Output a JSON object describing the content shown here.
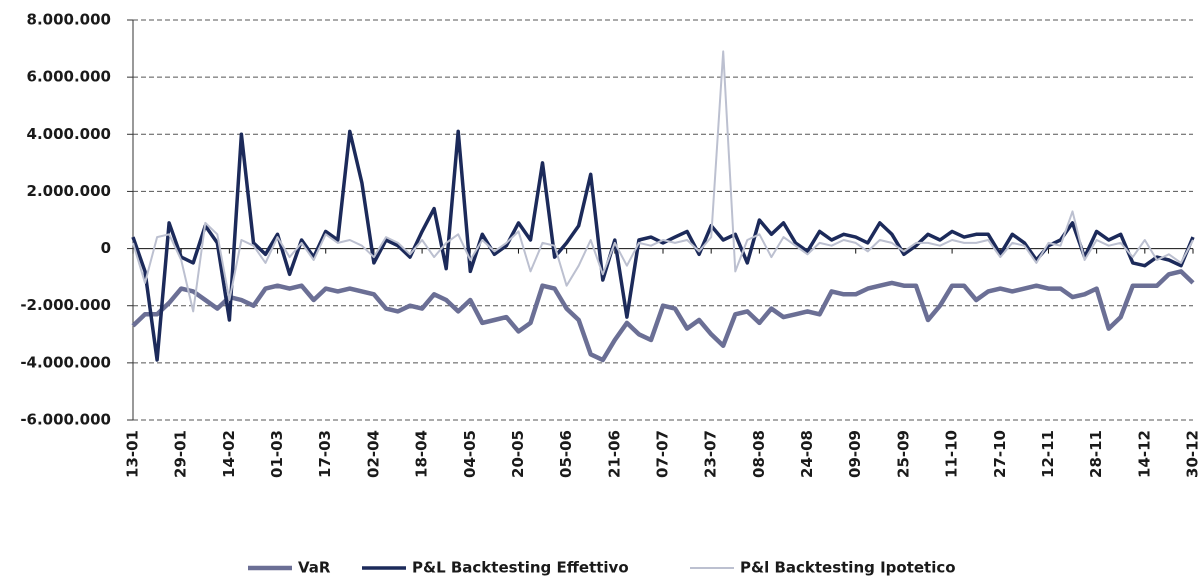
{
  "chart_data": {
    "type": "line",
    "categories": [
      "13-01",
      null,
      null,
      null,
      "29-01",
      null,
      null,
      null,
      "14-02",
      null,
      null,
      null,
      "01-03",
      null,
      null,
      null,
      "17-03",
      null,
      null,
      null,
      "02-04",
      null,
      null,
      null,
      "18-04",
      null,
      null,
      null,
      "04-05",
      null,
      null,
      null,
      "20-05",
      null,
      null,
      null,
      "05-06",
      null,
      null,
      null,
      "21-06",
      null,
      null,
      null,
      "07-07",
      null,
      null,
      null,
      "23-07",
      null,
      null,
      null,
      "08-08",
      null,
      null,
      null,
      "24-08",
      null,
      null,
      null,
      "09-09",
      null,
      null,
      null,
      "25-09",
      null,
      null,
      null,
      "11-10",
      null,
      null,
      null,
      "27-10",
      null,
      null,
      null,
      "12-11",
      null,
      null,
      null,
      "28-11",
      null,
      null,
      null,
      "14-12",
      null,
      null,
      null,
      "30-12"
    ],
    "ylim": [
      -6000000,
      8000000
    ],
    "yticks": [
      {
        "value": -6000000,
        "label": "-6.000.000"
      },
      {
        "value": -4000000,
        "label": "-4.000.000"
      },
      {
        "value": -2000000,
        "label": "-2.000.000"
      },
      0,
      {
        "value": 2000000,
        "label": "2.000.000"
      },
      {
        "value": 4000000,
        "label": "4.000.000"
      },
      {
        "value": 6000000,
        "label": "6.000.000"
      },
      {
        "value": 8000000,
        "label": "8.000.000"
      }
    ],
    "grid": true,
    "legend": "bottom",
    "series": [
      {
        "name": "VaR",
        "color": "#6b6f95",
        "values": [
          -2700000,
          -2300000,
          -2300000,
          -1900000,
          -1400000,
          -1500000,
          -1800000,
          -2100000,
          -1700000,
          -1800000,
          -2000000,
          -1400000,
          -1300000,
          -1400000,
          -1300000,
          -1800000,
          -1400000,
          -1500000,
          -1400000,
          -1500000,
          -1600000,
          -2100000,
          -2200000,
          -2000000,
          -2100000,
          -1600000,
          -1800000,
          -2200000,
          -1800000,
          -2600000,
          -2500000,
          -2400000,
          -2900000,
          -2600000,
          -1300000,
          -1400000,
          -2100000,
          -2500000,
          -3700000,
          -3900000,
          -3200000,
          -2600000,
          -3000000,
          -3200000,
          -2000000,
          -2100000,
          -2800000,
          -2500000,
          -3000000,
          -3400000,
          -2300000,
          -2200000,
          -2600000,
          -2100000,
          -2400000,
          -2300000,
          -2200000,
          -2300000,
          -1500000,
          -1600000,
          -1600000,
          -1400000,
          -1300000,
          -1200000,
          -1300000,
          -1300000,
          -2500000,
          -2000000,
          -1300000,
          -1300000,
          -1800000,
          -1500000,
          -1400000,
          -1500000,
          -1400000,
          -1300000,
          -1400000,
          -1400000,
          -1700000,
          -1600000,
          -1400000,
          -2800000,
          -2400000,
          -1300000,
          -1300000,
          -1300000,
          -900000,
          -800000,
          -1200000
        ]
      },
      {
        "name": "P&L Backtesting Effettivo",
        "color": "#1c2a5a",
        "values": [
          400000,
          -800000,
          -3900000,
          900000,
          -300000,
          -500000,
          800000,
          200000,
          -2500000,
          4000000,
          200000,
          -200000,
          500000,
          -900000,
          300000,
          -300000,
          600000,
          300000,
          4100000,
          2300000,
          -500000,
          300000,
          100000,
          -300000,
          600000,
          1400000,
          -700000,
          4100000,
          -800000,
          500000,
          -200000,
          100000,
          900000,
          300000,
          3000000,
          -300000,
          200000,
          800000,
          2600000,
          -1100000,
          300000,
          -2400000,
          300000,
          400000,
          200000,
          400000,
          600000,
          -200000,
          800000,
          300000,
          500000,
          -500000,
          1000000,
          500000,
          900000,
          200000,
          -100000,
          600000,
          300000,
          500000,
          400000,
          200000,
          900000,
          500000,
          -200000,
          100000,
          500000,
          300000,
          600000,
          400000,
          500000,
          500000,
          -200000,
          500000,
          200000,
          -400000,
          100000,
          300000,
          900000,
          -300000,
          600000,
          300000,
          500000,
          -500000,
          -600000,
          -300000,
          -400000,
          -600000,
          400000
        ]
      },
      {
        "name": "P&l Backtesting Ipotetico",
        "color": "#bcc0d0",
        "values": [
          200000,
          -1200000,
          400000,
          500000,
          -400000,
          -2200000,
          900000,
          500000,
          -1800000,
          300000,
          100000,
          -500000,
          400000,
          -300000,
          200000,
          -400000,
          500000,
          200000,
          300000,
          100000,
          -300000,
          400000,
          200000,
          -200000,
          300000,
          -300000,
          200000,
          500000,
          -400000,
          300000,
          -100000,
          200000,
          600000,
          -800000,
          200000,
          100000,
          -1300000,
          -600000,
          300000,
          -900000,
          200000,
          -600000,
          200000,
          100000,
          300000,
          200000,
          300000,
          -100000,
          400000,
          6900000,
          -800000,
          300000,
          500000,
          -300000,
          400000,
          100000,
          -200000,
          200000,
          100000,
          300000,
          200000,
          -100000,
          300000,
          200000,
          -100000,
          200000,
          200000,
          100000,
          300000,
          200000,
          200000,
          300000,
          -300000,
          200000,
          100000,
          -500000,
          200000,
          100000,
          1300000,
          -400000,
          300000,
          100000,
          200000,
          -300000,
          300000,
          -400000,
          -200000,
          -500000,
          300000
        ]
      }
    ]
  }
}
